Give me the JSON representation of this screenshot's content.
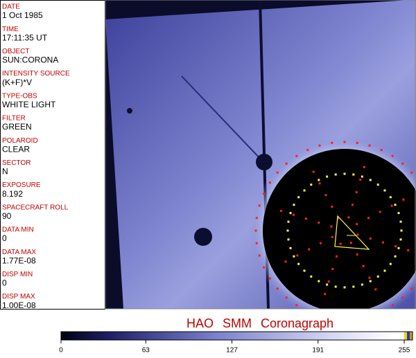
{
  "panel": {
    "fields": [
      {
        "label": "DATE",
        "value": "1 Oct 1985"
      },
      {
        "label": "TIME",
        "value": "17:11:35 UT"
      },
      {
        "label": "OBJECT",
        "value": "SUN:CORONA"
      },
      {
        "label": "INTENSITY SOURCE",
        "value": "(K+F)*V"
      },
      {
        "label": "TYPE-OBS",
        "value": "WHITE LIGHT"
      },
      {
        "label": "FILTER",
        "value": "GREEN"
      },
      {
        "label": "POLAROID",
        "value": "CLEAR"
      },
      {
        "label": "SECTOR",
        "value": "N"
      },
      {
        "label": "EXPOSURE",
        "value": "8.192"
      },
      {
        "label": "SPACECRAFT ROLL",
        "value": "90"
      },
      {
        "label": "DATA MIN",
        "value": "0"
      },
      {
        "label": "DATA MAX",
        "value": "1.77E-08"
      },
      {
        "label": "DISP MIN",
        "value": "0"
      },
      {
        "label": "DISP MAX",
        "value": "1.00E-08"
      }
    ]
  },
  "title": "HAO SMM Coronagraph",
  "colorbar": {
    "range": [
      0,
      255
    ],
    "ticks": [
      0,
      63,
      127,
      191,
      255
    ]
  }
}
